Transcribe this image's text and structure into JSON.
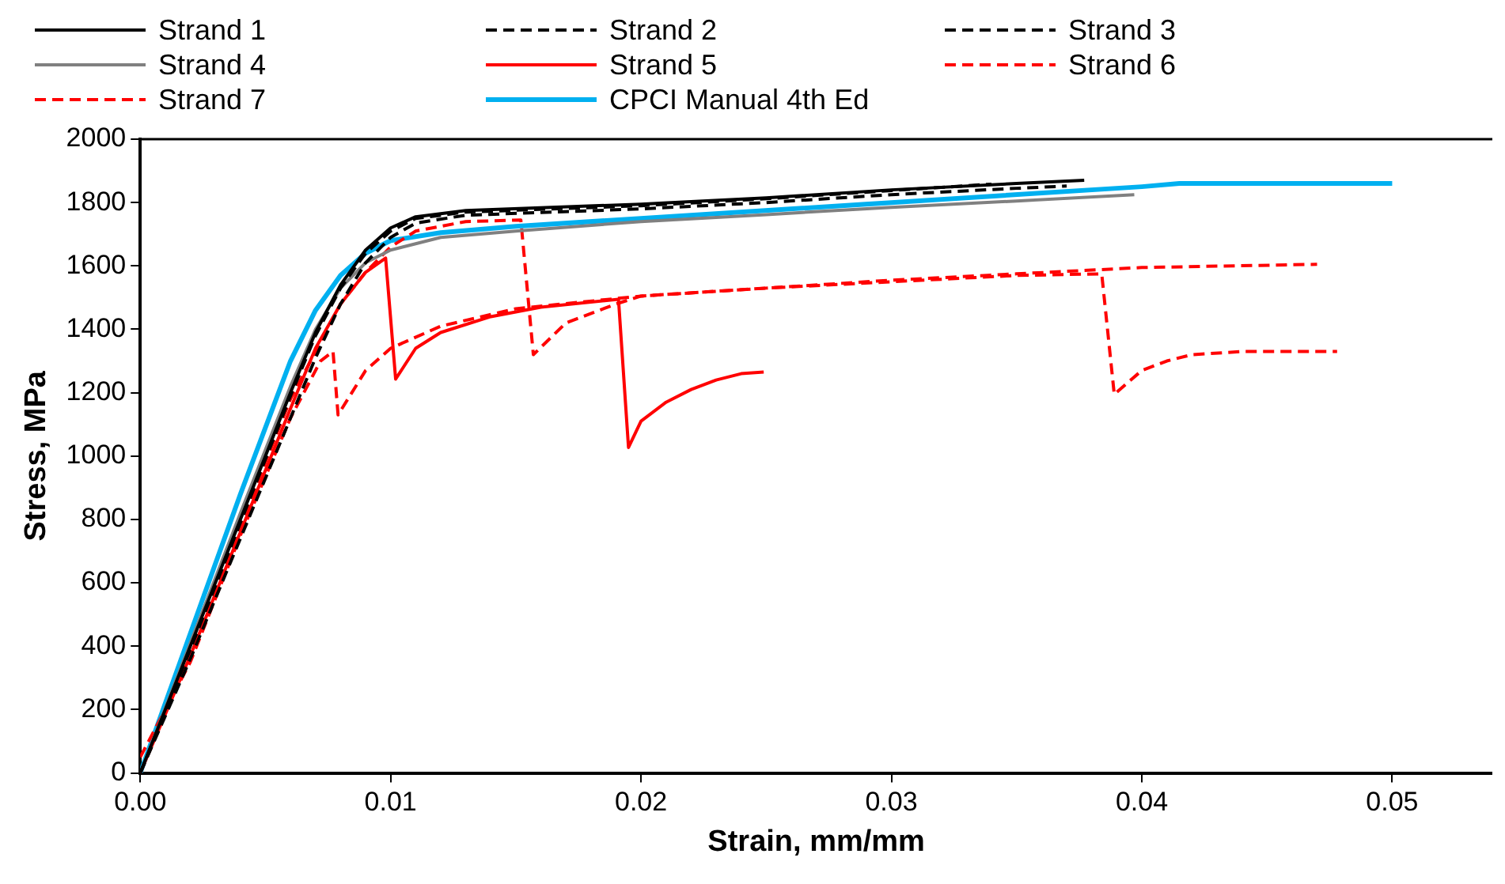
{
  "chart_data": {
    "type": "line",
    "xlabel": "Strain, mm/mm",
    "ylabel": "Stress, MPa",
    "xlim": [
      0,
      0.054
    ],
    "xticks": [
      {
        "value": 0,
        "label": "0.00"
      },
      0.01,
      0.02,
      0.03,
      0.04,
      0.05
    ],
    "ylim": [
      0,
      2000
    ],
    "yticks": [
      0,
      200,
      400,
      600,
      800,
      1000,
      1200,
      1400,
      1600,
      1800,
      2000
    ],
    "grid": false,
    "legend": "top",
    "marker": "none",
    "series": [
      {
        "name": "Strand 1",
        "color": "#000000",
        "line_style": "solid",
        "x": [
          0,
          0.002,
          0.004,
          0.006,
          0.007,
          0.008,
          0.009,
          0.01,
          0.011,
          0.013,
          0.02,
          0.025,
          0.03,
          0.035,
          0.0377
        ],
        "values": [
          0,
          400,
          800,
          1200,
          1390,
          1540,
          1650,
          1720,
          1755,
          1775,
          1795,
          1815,
          1840,
          1860,
          1870
        ]
      },
      {
        "name": "Strand 2",
        "color": "#000000",
        "line_style": "dashed",
        "x": [
          0,
          0.002,
          0.004,
          0.006,
          0.007,
          0.008,
          0.009,
          0.01,
          0.011,
          0.013,
          0.02,
          0.025,
          0.03,
          0.034
        ],
        "values": [
          0,
          390,
          790,
          1190,
          1380,
          1530,
          1640,
          1710,
          1750,
          1770,
          1790,
          1812,
          1838,
          1858
        ]
      },
      {
        "name": "Strand 3",
        "color": "#000000",
        "line_style": "dashed",
        "x": [
          0,
          0.002,
          0.004,
          0.006,
          0.007,
          0.008,
          0.009,
          0.01,
          0.011,
          0.013,
          0.02,
          0.025,
          0.03,
          0.035,
          0.037
        ],
        "values": [
          0,
          360,
          740,
          1120,
          1310,
          1480,
          1610,
          1690,
          1735,
          1760,
          1780,
          1800,
          1825,
          1845,
          1852
        ]
      },
      {
        "name": "Strand 4",
        "color": "#808080",
        "line_style": "solid",
        "x": [
          0,
          0.002,
          0.004,
          0.006,
          0.007,
          0.008,
          0.009,
          0.01,
          0.012,
          0.015,
          0.02,
          0.025,
          0.03,
          0.035,
          0.0397
        ],
        "values": [
          0,
          410,
          820,
          1220,
          1400,
          1530,
          1610,
          1650,
          1690,
          1710,
          1740,
          1762,
          1785,
          1805,
          1825
        ]
      },
      {
        "name": "Strand 5",
        "color": "#ff0000",
        "line_style": "solid",
        "x": [
          0,
          0.002,
          0.004,
          0.006,
          0.007,
          0.008,
          0.009,
          0.0098,
          0.0102,
          0.011,
          0.012,
          0.014,
          0.016,
          0.0191,
          0.0195,
          0.02,
          0.021,
          0.022,
          0.023,
          0.024,
          0.0249
        ],
        "values": [
          0,
          370,
          760,
          1150,
          1340,
          1480,
          1580,
          1625,
          1243,
          1340,
          1390,
          1440,
          1470,
          1495,
          1027,
          1110,
          1170,
          1210,
          1240,
          1260,
          1265
        ]
      },
      {
        "name": "Strand 6",
        "color": "#ff0000",
        "line_style": "dashed",
        "x": [
          0,
          0.002,
          0.004,
          0.006,
          0.0072,
          0.0077,
          0.0079,
          0.009,
          0.01,
          0.012,
          0.015,
          0.02,
          0.025,
          0.03,
          0.035,
          0.0384,
          0.0389,
          0.04,
          0.041,
          0.042,
          0.044,
          0.0478
        ],
        "values": [
          50,
          350,
          750,
          1120,
          1300,
          1330,
          1130,
          1270,
          1340,
          1410,
          1465,
          1505,
          1530,
          1550,
          1570,
          1575,
          1195,
          1270,
          1300,
          1320,
          1330,
          1330
        ]
      },
      {
        "name": "Strand 7",
        "color": "#ff0000",
        "line_style": "dashed",
        "x": [
          0,
          0.002,
          0.004,
          0.006,
          0.008,
          0.009,
          0.01,
          0.011,
          0.013,
          0.0152,
          0.0157,
          0.017,
          0.019,
          0.02,
          0.025,
          0.03,
          0.035,
          0.04,
          0.047
        ],
        "values": [
          0,
          380,
          780,
          1180,
          1480,
          1580,
          1660,
          1710,
          1740,
          1745,
          1320,
          1420,
          1480,
          1505,
          1530,
          1555,
          1575,
          1595,
          1605
        ]
      },
      {
        "name": "CPCI Manual 4th Ed",
        "color": "#00b0f0",
        "line_style": "solid",
        "x": [
          0,
          0.002,
          0.004,
          0.006,
          0.007,
          0.008,
          0.009,
          0.01,
          0.012,
          0.015,
          0.02,
          0.03,
          0.04,
          0.0415,
          0.05
        ],
        "values": [
          0,
          440,
          880,
          1300,
          1460,
          1570,
          1640,
          1680,
          1705,
          1725,
          1750,
          1800,
          1850,
          1860,
          1860
        ]
      }
    ]
  }
}
